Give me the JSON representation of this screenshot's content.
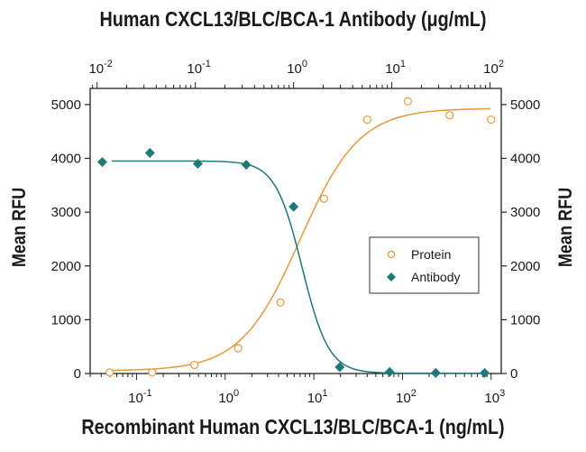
{
  "chart_data": {
    "type": "scatter",
    "title_top": "Human CXCL13/BLC/BCA-1 Antibody (μg/mL)",
    "xlabel": "Recombinant Human CXCL13/BLC/BCA-1 (ng/mL)",
    "ylabel_left": "Mean RFU",
    "ylabel_right": "Mean RFU",
    "x_scale": "log",
    "x_range": [
      0.03,
      1300
    ],
    "x_top_range": [
      0.0085,
      130
    ],
    "y_range": [
      0,
      5300
    ],
    "x_ticks_bottom": [
      {
        "value": 0.1,
        "base": "10",
        "exp": "-1"
      },
      {
        "value": 1,
        "base": "10",
        "exp": "0"
      },
      {
        "value": 10,
        "base": "10",
        "exp": "1"
      },
      {
        "value": 100,
        "base": "10",
        "exp": "2"
      },
      {
        "value": 1000,
        "base": "10",
        "exp": "3"
      }
    ],
    "x_ticks_top": [
      {
        "value": 0.01,
        "base": "10",
        "exp": "-2"
      },
      {
        "value": 0.1,
        "base": "10",
        "exp": "-1"
      },
      {
        "value": 1,
        "base": "10",
        "exp": "0"
      },
      {
        "value": 10,
        "base": "10",
        "exp": "1"
      },
      {
        "value": 100,
        "base": "10",
        "exp": "2"
      }
    ],
    "y_ticks": [
      {
        "value": 0,
        "label": "0"
      },
      {
        "value": 1000,
        "label": "1000"
      },
      {
        "value": 2000,
        "label": "2000"
      },
      {
        "value": 3000,
        "label": "3000"
      },
      {
        "value": 4000,
        "label": "4000"
      },
      {
        "value": 5000,
        "label": "5000"
      }
    ],
    "legend_position": "center-right",
    "series": [
      {
        "name": "Protein",
        "axis": "bottom",
        "marker": "open-circle",
        "color": "#e8973a",
        "points": [
          {
            "x": 0.05,
            "y": 20
          },
          {
            "x": 0.15,
            "y": 20
          },
          {
            "x": 0.45,
            "y": 160
          },
          {
            "x": 1.4,
            "y": 470
          },
          {
            "x": 4.2,
            "y": 1320
          },
          {
            "x": 13,
            "y": 3250
          },
          {
            "x": 40,
            "y": 4720
          },
          {
            "x": 115,
            "y": 5060
          },
          {
            "x": 340,
            "y": 4800
          },
          {
            "x": 1000,
            "y": 4720
          }
        ],
        "fit": {
          "bottom": 50,
          "top": 4930,
          "ec50": 7.0,
          "hill": 1.3
        }
      },
      {
        "name": "Antibody",
        "axis": "top",
        "marker": "filled-diamond",
        "color": "#1d7a78",
        "points": [
          {
            "x": 0.0113,
            "y": 3930
          },
          {
            "x": 0.0345,
            "y": 4100
          },
          {
            "x": 0.106,
            "y": 3900
          },
          {
            "x": 0.33,
            "y": 3880
          },
          {
            "x": 1.0,
            "y": 3100
          },
          {
            "x": 2.95,
            "y": 120
          },
          {
            "x": 9.5,
            "y": 30
          },
          {
            "x": 28,
            "y": 10
          },
          {
            "x": 88,
            "y": 10
          }
        ],
        "fit": {
          "bottom": 5,
          "top": 3950,
          "ec50": 1.22,
          "hill": 3.2
        }
      }
    ]
  }
}
